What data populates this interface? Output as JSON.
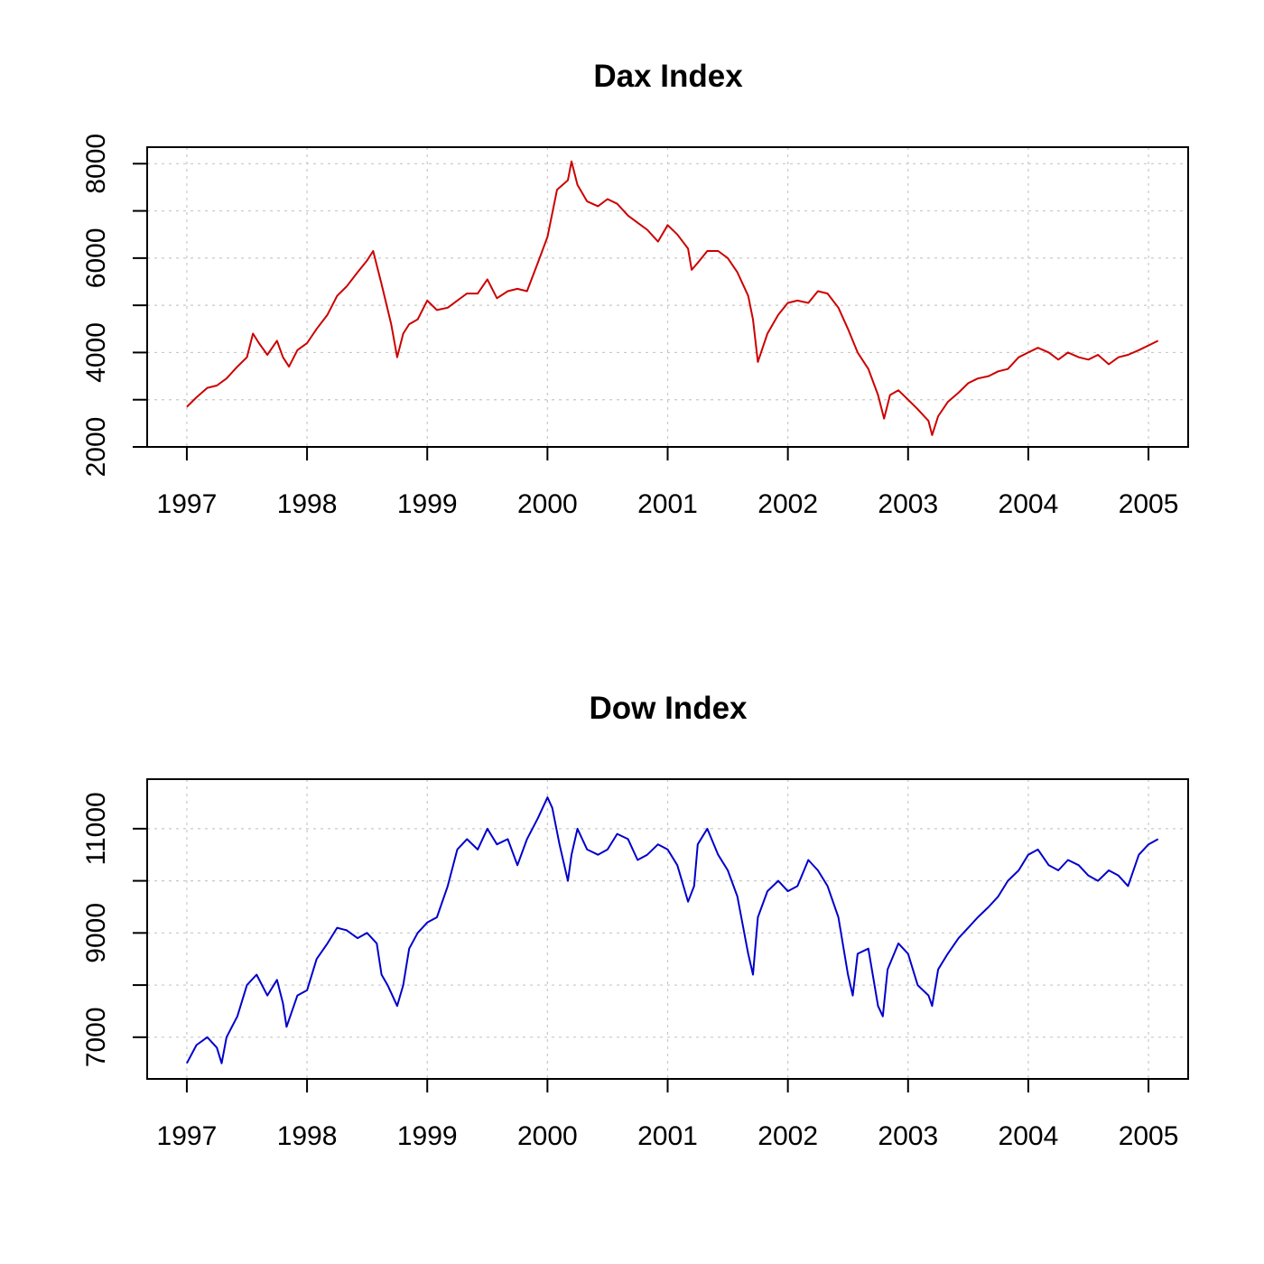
{
  "chart_data": [
    {
      "type": "line",
      "title": "Dax Index",
      "xlabel": "",
      "ylabel": "",
      "x_ticks": [
        "1997",
        "1998",
        "1999",
        "2000",
        "2001",
        "2002",
        "2003",
        "2004",
        "2005"
      ],
      "y_ticks": [
        "2000",
        "4000",
        "6000",
        "8000"
      ],
      "y_grid": [
        2000,
        3000,
        4000,
        5000,
        6000,
        7000,
        8000
      ],
      "xlim": [
        1996.67,
        2005.33
      ],
      "ylim": [
        2000,
        8350
      ],
      "grid": true,
      "color": "#cc0000",
      "series": [
        {
          "x": [
            1997.0,
            1997.08,
            1997.17,
            1997.25,
            1997.33,
            1997.42,
            1997.5,
            1997.55,
            1997.6,
            1997.67,
            1997.75,
            1997.8,
            1997.85,
            1997.92,
            1998.0,
            1998.08,
            1998.17,
            1998.25,
            1998.33,
            1998.42,
            1998.5,
            1998.55,
            1998.62,
            1998.7,
            1998.75,
            1998.8,
            1998.85,
            1998.92,
            1999.0,
            1999.08,
            1999.17,
            1999.25,
            1999.33,
            1999.42,
            1999.5,
            1999.58,
            1999.67,
            1999.75,
            1999.83,
            1999.92,
            2000.0,
            2000.08,
            2000.17,
            2000.2,
            2000.25,
            2000.33,
            2000.42,
            2000.5,
            2000.58,
            2000.67,
            2000.75,
            2000.83,
            2000.92,
            2001.0,
            2001.08,
            2001.17,
            2001.2,
            2001.25,
            2001.33,
            2001.42,
            2001.5,
            2001.58,
            2001.67,
            2001.71,
            2001.75,
            2001.83,
            2001.92,
            2002.0,
            2002.08,
            2002.17,
            2002.25,
            2002.33,
            2002.42,
            2002.5,
            2002.58,
            2002.67,
            2002.75,
            2002.8,
            2002.85,
            2002.92,
            2003.0,
            2003.08,
            2003.17,
            2003.2,
            2003.25,
            2003.33,
            2003.42,
            2003.5,
            2003.58,
            2003.67,
            2003.75,
            2003.83,
            2003.92,
            2004.0,
            2004.08,
            2004.17,
            2004.25,
            2004.33,
            2004.42,
            2004.5,
            2004.58,
            2004.67,
            2004.75,
            2004.83,
            2004.92,
            2005.0,
            2005.08
          ],
          "y": [
            2850,
            3050,
            3250,
            3300,
            3450,
            3700,
            3900,
            4400,
            4200,
            3950,
            4250,
            3900,
            3700,
            4050,
            4200,
            4500,
            4800,
            5200,
            5400,
            5700,
            5950,
            6150,
            5450,
            4600,
            3900,
            4400,
            4600,
            4700,
            5100,
            4900,
            4950,
            5100,
            5250,
            5250,
            5550,
            5150,
            5300,
            5350,
            5300,
            5900,
            6450,
            7450,
            7650,
            8050,
            7550,
            7200,
            7100,
            7250,
            7150,
            6900,
            6750,
            6600,
            6350,
            6700,
            6500,
            6200,
            5750,
            5900,
            6150,
            6150,
            6000,
            5700,
            5200,
            4700,
            3800,
            4400,
            4800,
            5050,
            5100,
            5050,
            5300,
            5250,
            4950,
            4500,
            4000,
            3650,
            3100,
            2600,
            3100,
            3200,
            3000,
            2800,
            2550,
            2250,
            2650,
            2950,
            3150,
            3350,
            3450,
            3500,
            3600,
            3650,
            3900,
            4000,
            4100,
            4000,
            3850,
            4000,
            3900,
            3850,
            3950,
            3750,
            3900,
            3950,
            4050,
            4150,
            4250
          ]
        }
      ]
    },
    {
      "type": "line",
      "title": "Dow Index",
      "xlabel": "",
      "ylabel": "",
      "x_ticks": [
        "1997",
        "1998",
        "1999",
        "2000",
        "2001",
        "2002",
        "2003",
        "2004",
        "2005"
      ],
      "y_ticks": [
        "7000",
        "9000",
        "11000"
      ],
      "y_grid": [
        7000,
        8000,
        9000,
        10000,
        11000
      ],
      "xlim": [
        1996.67,
        2005.33
      ],
      "ylim": [
        6200,
        11950
      ],
      "grid": true,
      "color": "#0000cc",
      "series": [
        {
          "x": [
            1997.0,
            1997.08,
            1997.17,
            1997.25,
            1997.29,
            1997.33,
            1997.42,
            1997.5,
            1997.58,
            1997.67,
            1997.75,
            1997.8,
            1997.83,
            1997.92,
            1998.0,
            1998.08,
            1998.17,
            1998.25,
            1998.33,
            1998.42,
            1998.5,
            1998.58,
            1998.62,
            1998.67,
            1998.75,
            1998.8,
            1998.85,
            1998.92,
            1999.0,
            1999.08,
            1999.17,
            1999.25,
            1999.33,
            1999.42,
            1999.5,
            1999.58,
            1999.67,
            1999.75,
            1999.83,
            1999.92,
            2000.0,
            2000.04,
            2000.1,
            2000.17,
            2000.2,
            2000.25,
            2000.33,
            2000.42,
            2000.5,
            2000.58,
            2000.67,
            2000.75,
            2000.83,
            2000.92,
            2001.0,
            2001.08,
            2001.17,
            2001.22,
            2001.25,
            2001.33,
            2001.42,
            2001.5,
            2001.58,
            2001.67,
            2001.71,
            2001.75,
            2001.83,
            2001.92,
            2002.0,
            2002.08,
            2002.17,
            2002.25,
            2002.33,
            2002.42,
            2002.5,
            2002.54,
            2002.58,
            2002.67,
            2002.75,
            2002.79,
            2002.83,
            2002.92,
            2003.0,
            2003.08,
            2003.17,
            2003.2,
            2003.25,
            2003.33,
            2003.42,
            2003.5,
            2003.58,
            2003.67,
            2003.75,
            2003.83,
            2003.92,
            2004.0,
            2004.08,
            2004.17,
            2004.25,
            2004.33,
            2004.42,
            2004.5,
            2004.58,
            2004.67,
            2004.75,
            2004.83,
            2004.92,
            2005.0,
            2005.08
          ],
          "y": [
            6500,
            6850,
            7000,
            6800,
            6500,
            7000,
            7400,
            8000,
            8200,
            7800,
            8100,
            7650,
            7200,
            7800,
            7900,
            8500,
            8800,
            9100,
            9050,
            8900,
            9000,
            8800,
            8200,
            8000,
            7600,
            8000,
            8700,
            9000,
            9200,
            9300,
            9900,
            10600,
            10800,
            10600,
            11000,
            10700,
            10800,
            10300,
            10800,
            11200,
            11600,
            11400,
            10700,
            10000,
            10500,
            11000,
            10600,
            10500,
            10600,
            10900,
            10800,
            10400,
            10500,
            10700,
            10600,
            10300,
            9600,
            9900,
            10700,
            11000,
            10500,
            10200,
            9700,
            8600,
            8200,
            9300,
            9800,
            10000,
            9800,
            9900,
            10400,
            10200,
            9900,
            9300,
            8200,
            7800,
            8600,
            8700,
            7600,
            7400,
            8300,
            8800,
            8600,
            8000,
            7800,
            7600,
            8300,
            8600,
            8900,
            9100,
            9300,
            9500,
            9700,
            10000,
            10200,
            10500,
            10600,
            10300,
            10200,
            10400,
            10300,
            10100,
            10000,
            10200,
            10100,
            9900,
            10500,
            10700,
            10800
          ]
        }
      ]
    }
  ]
}
